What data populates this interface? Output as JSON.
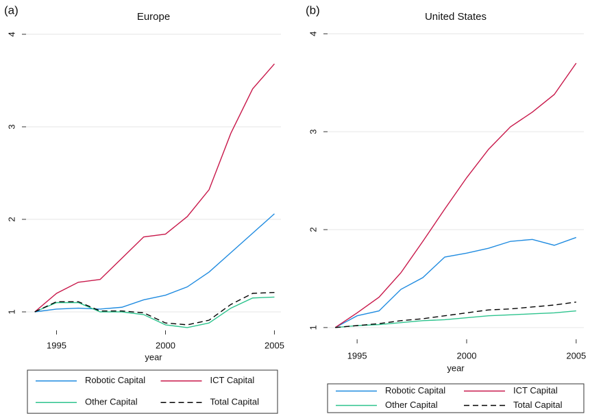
{
  "chart_data": [
    {
      "type": "line",
      "panel_label": "(a)",
      "title": "Europe",
      "x_label": "year",
      "x": [
        1994,
        1995,
        1996,
        1997,
        1998,
        1999,
        2000,
        2001,
        2002,
        2003,
        2004,
        2005
      ],
      "xlim": [
        1993.6,
        2005.3
      ],
      "xticks": [
        1995,
        2000,
        2005
      ],
      "ylim": [
        0.8,
        4.2
      ],
      "yticks": [
        1,
        2,
        3,
        4
      ],
      "grid": true,
      "series": [
        {
          "name": "Robotic Capital",
          "color": "#1f8be0",
          "dash": "solid",
          "values": [
            1.0,
            1.03,
            1.04,
            1.03,
            1.05,
            1.13,
            1.18,
            1.27,
            1.43,
            1.64,
            1.85,
            2.06
          ]
        },
        {
          "name": "ICT Capital",
          "color": "#c8184a",
          "dash": "solid",
          "values": [
            1.0,
            1.2,
            1.32,
            1.35,
            1.58,
            1.81,
            1.84,
            2.03,
            2.32,
            2.93,
            3.41,
            3.68
          ]
        },
        {
          "name": "Other Capital",
          "color": "#2cc38d",
          "dash": "solid",
          "values": [
            1.0,
            1.1,
            1.1,
            1.0,
            1.0,
            0.97,
            0.86,
            0.83,
            0.88,
            1.04,
            1.15,
            1.16
          ]
        },
        {
          "name": "Total Capital",
          "color": "#000000",
          "dash": "dashed",
          "values": [
            1.0,
            1.11,
            1.11,
            1.01,
            1.01,
            0.99,
            0.88,
            0.86,
            0.91,
            1.08,
            1.2,
            1.21
          ]
        }
      ]
    },
    {
      "type": "line",
      "panel_label": "(b)",
      "title": "United States",
      "x_label": "year",
      "x": [
        1994,
        1995,
        1996,
        1997,
        1998,
        1999,
        2000,
        2001,
        2002,
        2003,
        2004,
        2005
      ],
      "xlim": [
        1993.65,
        2005.35
      ],
      "xticks": [
        1995,
        2000,
        2005
      ],
      "ylim": [
        0.88,
        4.1
      ],
      "yticks": [
        1,
        2,
        3,
        4
      ],
      "grid": true,
      "series": [
        {
          "name": "Robotic Capital",
          "color": "#1f8be0",
          "dash": "solid",
          "values": [
            1.0,
            1.12,
            1.17,
            1.39,
            1.51,
            1.72,
            1.76,
            1.81,
            1.88,
            1.9,
            1.84,
            1.92
          ]
        },
        {
          "name": "ICT Capital",
          "color": "#c8184a",
          "dash": "solid",
          "values": [
            1.0,
            1.15,
            1.31,
            1.56,
            1.88,
            2.21,
            2.53,
            2.82,
            3.05,
            3.2,
            3.38,
            3.7
          ]
        },
        {
          "name": "Other Capital",
          "color": "#2cc38d",
          "dash": "solid",
          "values": [
            1.0,
            1.02,
            1.03,
            1.05,
            1.07,
            1.08,
            1.1,
            1.12,
            1.13,
            1.14,
            1.15,
            1.17
          ]
        },
        {
          "name": "Total Capital",
          "color": "#000000",
          "dash": "dashed",
          "values": [
            1.0,
            1.02,
            1.04,
            1.07,
            1.09,
            1.12,
            1.15,
            1.18,
            1.19,
            1.21,
            1.23,
            1.26
          ]
        }
      ]
    }
  ]
}
